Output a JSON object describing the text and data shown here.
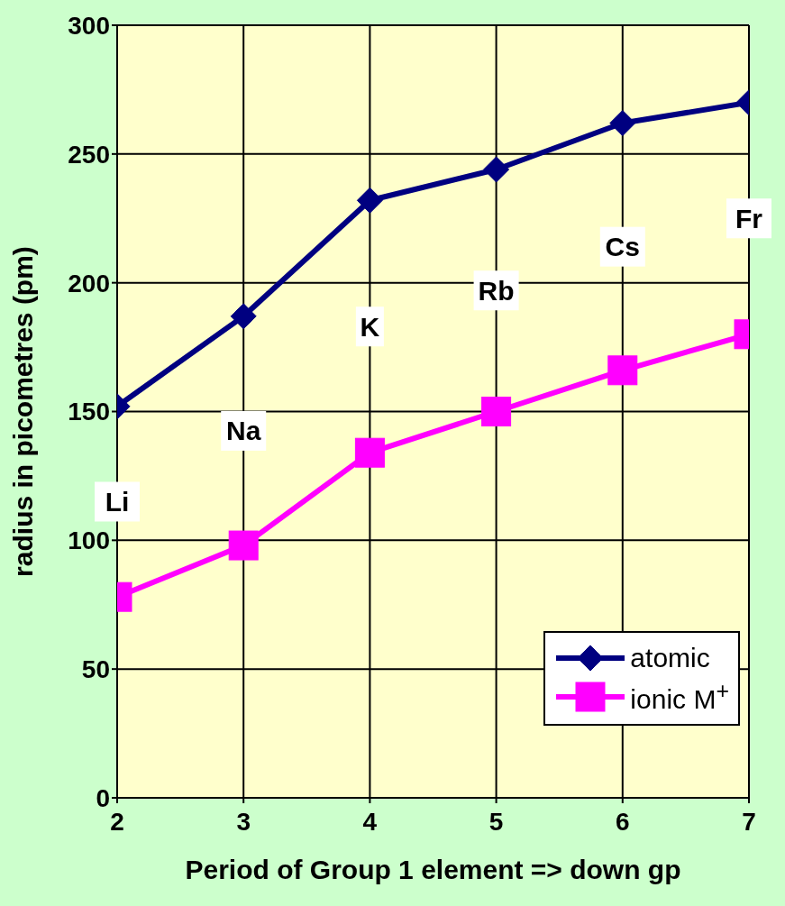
{
  "chart_data": {
    "type": "line",
    "xlabel": "Period of Group 1 element => down gp",
    "ylabel": "radius in picometres (pm)",
    "x": [
      2,
      3,
      4,
      5,
      6,
      7
    ],
    "series": [
      {
        "name": "atomic",
        "color": "#000080",
        "marker": "diamond",
        "values": [
          152,
          187,
          232,
          244,
          262,
          270
        ]
      },
      {
        "name": "ionic M$^{+}$",
        "color": "#ff00ff",
        "marker": "square",
        "values": [
          78,
          98,
          134,
          150,
          166,
          180
        ]
      }
    ],
    "xlim": [
      2,
      7
    ],
    "xticks": [
      2,
      3,
      4,
      5,
      6,
      7
    ],
    "ylim": [
      0,
      300
    ],
    "yticks": [
      0,
      50,
      100,
      150,
      200,
      250,
      300
    ],
    "grid": true,
    "legend": "bottom right",
    "line_style": "solid",
    "annotations": [
      "Li",
      "Na",
      "K",
      "Rb",
      "Cs",
      "Fr"
    ]
  }
}
